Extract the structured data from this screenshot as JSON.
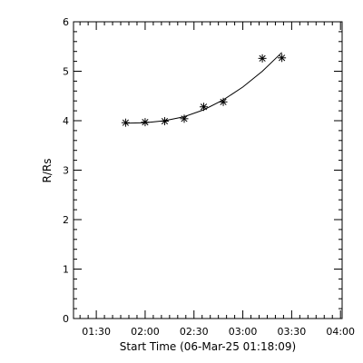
{
  "chart_data": {
    "type": "scatter",
    "xlabel": "Start Time (06-Mar-25 01:18:09)",
    "ylabel": "R/Rs",
    "x_tick_labels": [
      "01:30",
      "02:00",
      "02:30",
      "03:00",
      "03:30",
      "04:00"
    ],
    "x_tick_minutes": [
      90,
      120,
      150,
      180,
      210,
      240
    ],
    "y_ticks": [
      0,
      1,
      2,
      3,
      4,
      5,
      6
    ],
    "xlim_minutes": [
      76,
      241
    ],
    "ylim": [
      0,
      6
    ],
    "grid": false,
    "marker": "asterisk",
    "points": [
      {
        "t": "01:48",
        "r": 3.96
      },
      {
        "t": "02:00",
        "r": 3.97
      },
      {
        "t": "02:12",
        "r": 3.99
      },
      {
        "t": "02:24",
        "r": 4.04
      },
      {
        "t": "02:36",
        "r": 4.28
      },
      {
        "t": "02:48",
        "r": 4.38
      },
      {
        "t": "03:12",
        "r": 5.26
      },
      {
        "t": "03:24",
        "r": 5.27
      }
    ],
    "fit_curve": [
      {
        "t": "01:48",
        "r": 3.95
      },
      {
        "t": "02:00",
        "r": 3.96
      },
      {
        "t": "02:12",
        "r": 4.0
      },
      {
        "t": "02:24",
        "r": 4.08
      },
      {
        "t": "02:36",
        "r": 4.22
      },
      {
        "t": "02:48",
        "r": 4.42
      },
      {
        "t": "03:00",
        "r": 4.68
      },
      {
        "t": "03:12",
        "r": 5.0
      },
      {
        "t": "03:24",
        "r": 5.38
      }
    ]
  }
}
